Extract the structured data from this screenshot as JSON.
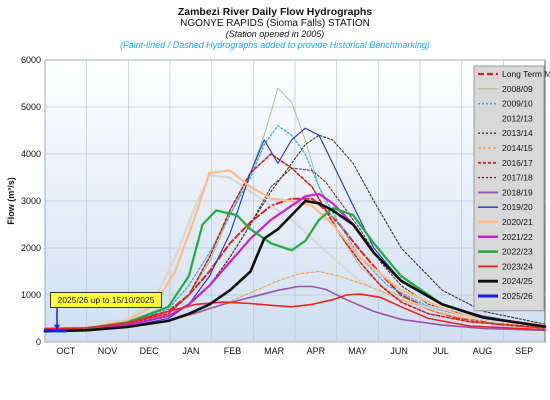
{
  "chart_data": {
    "type": "line",
    "title": "Zambezi River Daily Flow Hydrographs",
    "subtitle": "NGONYE RAPIDS (Sioma Falls) STATION",
    "note": "(Station opened in 2005)",
    "note2": "(Faint-lined / Dashed Hydrographs added to provide Historical Benchmarking)",
    "ylabel": "Flow (m³/s)",
    "xlabel": "",
    "ylim": [
      0,
      6000
    ],
    "yticks": [
      "0",
      "1000",
      "2000",
      "3000",
      "4000",
      "5000",
      "6000"
    ],
    "xticks": [
      "OCT",
      "NOV",
      "DEC",
      "JAN",
      "FEB",
      "MAR",
      "APR",
      "MAY",
      "JUN",
      "JUL",
      "AUG",
      "SEP"
    ],
    "xlim": [
      0,
      365
    ],
    "grid": true,
    "legend_position": "right",
    "annotation": "2025/26 up to 15/10/2025",
    "series": [
      {
        "name": "Long Term Mean",
        "color": "#e02020",
        "width": 2,
        "dash": "6,3",
        "x": [
          0,
          30,
          60,
          90,
          105,
          120,
          135,
          150,
          165,
          180,
          195,
          205,
          215,
          230,
          245,
          260,
          280,
          300,
          330,
          365
        ],
        "y": [
          270,
          310,
          420,
          650,
          1000,
          1500,
          2100,
          2550,
          2900,
          3050,
          3050,
          2800,
          2500,
          1950,
          1450,
          1000,
          700,
          520,
          380,
          300
        ]
      },
      {
        "name": "2008/09",
        "color": "#aabb88",
        "width": 0.9,
        "dash": "",
        "x": [
          0,
          30,
          60,
          90,
          105,
          120,
          135,
          150,
          160,
          170,
          180,
          190,
          200,
          215,
          230,
          250,
          280,
          310,
          365
        ],
        "y": [
          250,
          290,
          400,
          600,
          1000,
          1700,
          2700,
          3600,
          4400,
          5400,
          5100,
          4300,
          3300,
          2300,
          1600,
          1100,
          700,
          500,
          320
        ]
      },
      {
        "name": "2009/10",
        "color": "#22aaee",
        "width": 1.2,
        "dash": "2,2",
        "x": [
          0,
          30,
          60,
          90,
          105,
          120,
          135,
          150,
          160,
          170,
          180,
          190,
          200,
          215,
          230,
          250,
          280,
          310,
          365
        ],
        "y": [
          260,
          300,
          420,
          700,
          1200,
          1900,
          2700,
          3500,
          4200,
          4600,
          4400,
          4000,
          3300,
          2500,
          1800,
          1200,
          750,
          520,
          330
        ]
      },
      {
        "name": "2012/13",
        "color": "#d8d8d8",
        "width": 2.5,
        "dash": "3,2",
        "x": [
          0,
          30,
          60,
          80,
          95,
          110,
          120,
          135,
          150,
          165,
          180,
          195,
          210,
          230,
          260,
          300,
          365
        ],
        "y": [
          260,
          320,
          500,
          900,
          1800,
          2900,
          3550,
          3500,
          3200,
          2900,
          2600,
          2200,
          1800,
          1300,
          900,
          550,
          330
        ]
      },
      {
        "name": "2013/14",
        "color": "#333333",
        "width": 1.1,
        "dash": "2,2",
        "x": [
          0,
          30,
          60,
          90,
          105,
          120,
          135,
          150,
          165,
          180,
          190,
          200,
          210,
          225,
          240,
          260,
          290,
          320,
          365
        ],
        "y": [
          250,
          290,
          380,
          550,
          800,
          1200,
          1800,
          2500,
          3200,
          3800,
          4200,
          4400,
          4300,
          3800,
          3000,
          2000,
          1100,
          650,
          380
        ]
      },
      {
        "name": "2014/15",
        "color": "#f0a050",
        "width": 1.1,
        "dash": "3,2",
        "x": [
          0,
          30,
          60,
          90,
          110,
          130,
          150,
          170,
          185,
          200,
          215,
          235,
          260,
          290,
          320,
          365
        ],
        "y": [
          250,
          280,
          350,
          450,
          600,
          800,
          1050,
          1300,
          1450,
          1500,
          1400,
          1200,
          900,
          600,
          420,
          300
        ]
      },
      {
        "name": "2016/17",
        "color": "#cc2222",
        "width": 1.6,
        "dash": "3,2",
        "x": [
          0,
          30,
          60,
          90,
          105,
          120,
          135,
          150,
          165,
          180,
          195,
          205,
          215,
          230,
          245,
          260,
          280,
          310,
          365
        ],
        "y": [
          260,
          300,
          400,
          600,
          1000,
          1800,
          2800,
          3600,
          4000,
          3700,
          3300,
          2800,
          2300,
          1700,
          1200,
          850,
          600,
          430,
          300
        ]
      },
      {
        "name": "2017/18",
        "color": "#663322",
        "width": 1.1,
        "dash": "2,2",
        "x": [
          0,
          30,
          60,
          90,
          105,
          120,
          135,
          150,
          165,
          180,
          195,
          205,
          215,
          230,
          245,
          260,
          280,
          310,
          365
        ],
        "y": [
          250,
          280,
          380,
          550,
          800,
          1200,
          1800,
          2500,
          3300,
          3700,
          3650,
          3400,
          3000,
          2400,
          1700,
          1200,
          800,
          550,
          330
        ]
      },
      {
        "name": "2018/19",
        "color": "#9955aa",
        "width": 1.6,
        "dash": "",
        "x": [
          0,
          30,
          60,
          90,
          110,
          130,
          150,
          170,
          185,
          195,
          205,
          220,
          240,
          260,
          290,
          320,
          365
        ],
        "y": [
          260,
          280,
          330,
          450,
          620,
          800,
          950,
          1100,
          1180,
          1180,
          1120,
          900,
          650,
          480,
          360,
          290,
          250
        ]
      },
      {
        "name": "2019/20",
        "color": "#2233bb",
        "width": 1.1,
        "dash": "",
        "x": [
          0,
          30,
          60,
          90,
          105,
          120,
          135,
          150,
          160,
          170,
          180,
          190,
          200,
          210,
          225,
          240,
          260,
          290,
          320,
          365
        ],
        "y": [
          230,
          260,
          330,
          500,
          800,
          1400,
          2300,
          3600,
          4300,
          3800,
          4300,
          4550,
          4400,
          3800,
          2900,
          2000,
          1300,
          800,
          550,
          330
        ]
      },
      {
        "name": "2020/21",
        "color": "#ffbb88",
        "width": 2.2,
        "dash": "",
        "x": [
          0,
          30,
          60,
          80,
          95,
          110,
          120,
          135,
          150,
          165,
          180,
          195,
          210,
          230,
          260,
          300,
          365
        ],
        "y": [
          250,
          290,
          450,
          800,
          1500,
          2700,
          3600,
          3650,
          3300,
          3050,
          3000,
          2900,
          2500,
          1800,
          1100,
          600,
          350
        ]
      },
      {
        "name": "2021/22",
        "color": "#cc22cc",
        "width": 2.2,
        "dash": "",
        "x": [
          0,
          30,
          60,
          90,
          105,
          120,
          135,
          150,
          165,
          180,
          190,
          200,
          210,
          225,
          240,
          260,
          290,
          320,
          365
        ],
        "y": [
          240,
          270,
          360,
          550,
          800,
          1200,
          1700,
          2200,
          2600,
          2900,
          3100,
          3150,
          2950,
          2500,
          1900,
          1300,
          800,
          520,
          330
        ]
      },
      {
        "name": "2022/23",
        "color": "#22aa44",
        "width": 2.2,
        "dash": "",
        "x": [
          0,
          30,
          60,
          90,
          105,
          115,
          125,
          140,
          150,
          165,
          180,
          190,
          200,
          210,
          225,
          240,
          260,
          290,
          320,
          365
        ],
        "y": [
          250,
          290,
          420,
          750,
          1400,
          2500,
          2800,
          2700,
          2400,
          2100,
          1950,
          2150,
          2600,
          2850,
          2700,
          2100,
          1400,
          800,
          520,
          330
        ]
      },
      {
        "name": "2023/24",
        "color": "#ee2222",
        "width": 1.6,
        "dash": "",
        "x": [
          0,
          30,
          60,
          90,
          110,
          130,
          150,
          165,
          180,
          195,
          210,
          220,
          230,
          245,
          260,
          280,
          310,
          365
        ],
        "y": [
          290,
          300,
          400,
          650,
          800,
          850,
          820,
          780,
          750,
          800,
          900,
          1000,
          1020,
          950,
          750,
          500,
          340,
          260
        ]
      },
      {
        "name": "2024/25",
        "color": "#111111",
        "width": 2.6,
        "dash": "",
        "x": [
          0,
          30,
          60,
          90,
          105,
          120,
          135,
          150,
          160,
          170,
          180,
          190,
          200,
          210,
          225,
          240,
          260,
          290,
          320,
          365
        ],
        "y": [
          230,
          250,
          320,
          450,
          600,
          800,
          1100,
          1500,
          2200,
          2400,
          2700,
          3000,
          2950,
          2800,
          2500,
          1900,
          1300,
          800,
          520,
          330
        ]
      },
      {
        "name": "2025/26",
        "color": "#1122ee",
        "width": 2.6,
        "dash": "",
        "x": [
          0,
          5,
          10,
          15
        ],
        "y": [
          250,
          240,
          235,
          230
        ]
      }
    ]
  }
}
